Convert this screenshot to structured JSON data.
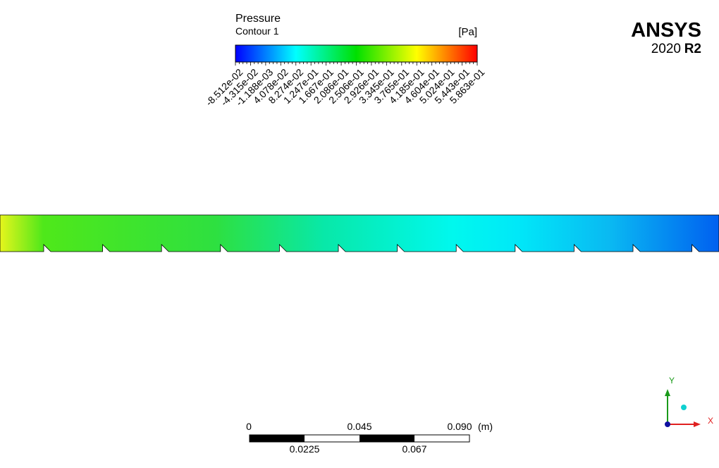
{
  "legend": {
    "title": "Pressure",
    "subtitle": "Contour 1",
    "unit": "[Pa]",
    "labels": [
      "-8.512e-02",
      "-4.315e-02",
      "-1.188e-03",
      "4.078e-02",
      "8.274e-02",
      "1.247e-01",
      "1.667e-01",
      "2.086e-01",
      "2.506e-01",
      "2.926e-01",
      "3.345e-01",
      "3.765e-01",
      "4.185e-01",
      "4.604e-01",
      "5.024e-01",
      "5.443e-01",
      "5.863e-01"
    ]
  },
  "logo": {
    "brand": "ANSYS",
    "version": "2020",
    "release": "R2"
  },
  "scale_bar": {
    "top_labels": [
      "0",
      "0.045",
      "0.090"
    ],
    "unit": "(m)",
    "bottom_labels": [
      "0.0225",
      "0.067"
    ]
  },
  "axes": {
    "y": "Y",
    "x": "X"
  }
}
